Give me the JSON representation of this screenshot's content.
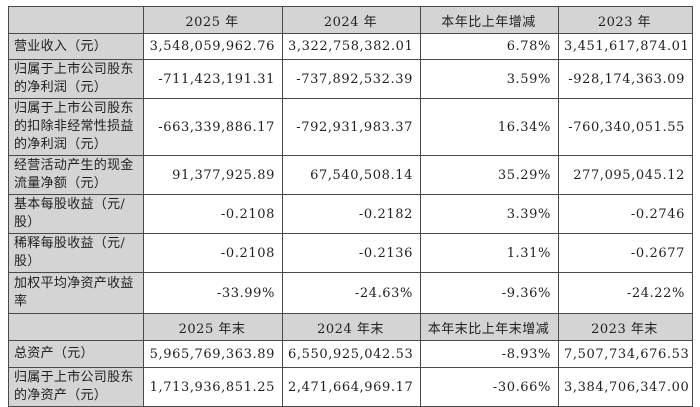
{
  "colors": {
    "header_background": "#d4d4d4",
    "label_background": "#d4d4d4",
    "cell_background": "#ffffff",
    "border": "#4a4a4a",
    "text": "#1f1f1f"
  },
  "table": {
    "header1": [
      "2025 年",
      "2024 年",
      "本年比上年增减",
      "2023 年"
    ],
    "rows1": [
      {
        "label": "营业收入（元）",
        "values": [
          "3,548,059,962.76",
          "3,322,758,382.01",
          "6.78%",
          "3,451,617,874.01"
        ]
      },
      {
        "label": "归属于上市公司股东的净利润（元）",
        "values": [
          "-711,423,191.31",
          "-737,892,532.39",
          "3.59%",
          "-928,174,363.09"
        ]
      },
      {
        "label": "归属于上市公司股东的扣除非经常性损益的净利润（元）",
        "values": [
          "-663,339,886.17",
          "-792,931,983.37",
          "16.34%",
          "-760,340,051.55"
        ]
      },
      {
        "label": "经营活动产生的现金流量净额（元）",
        "values": [
          "91,377,925.89",
          "67,540,508.14",
          "35.29%",
          "277,095,045.12"
        ]
      },
      {
        "label": "基本每股收益（元/股）",
        "values": [
          "-0.2108",
          "-0.2182",
          "3.39%",
          "-0.2746"
        ]
      },
      {
        "label": "稀释每股收益（元/股）",
        "values": [
          "-0.2108",
          "-0.2136",
          "1.31%",
          "-0.2677"
        ]
      },
      {
        "label": "加权平均净资产收益率",
        "values": [
          "-33.99%",
          "-24.63%",
          "-9.36%",
          "-24.22%"
        ]
      }
    ],
    "header2": [
      "2025 年末",
      "2024 年末",
      "本年末比上年末增减",
      "2023 年末"
    ],
    "rows2": [
      {
        "label": "总资产（元）",
        "values": [
          "5,965,769,363.89",
          "6,550,925,042.53",
          "-8.93%",
          "7,507,734,676.53"
        ]
      },
      {
        "label": "归属于上市公司股东的净资产（元）",
        "values": [
          "1,713,936,851.25",
          "2,471,664,969.17",
          "-30.66%",
          "3,384,706,347.00"
        ]
      }
    ]
  }
}
